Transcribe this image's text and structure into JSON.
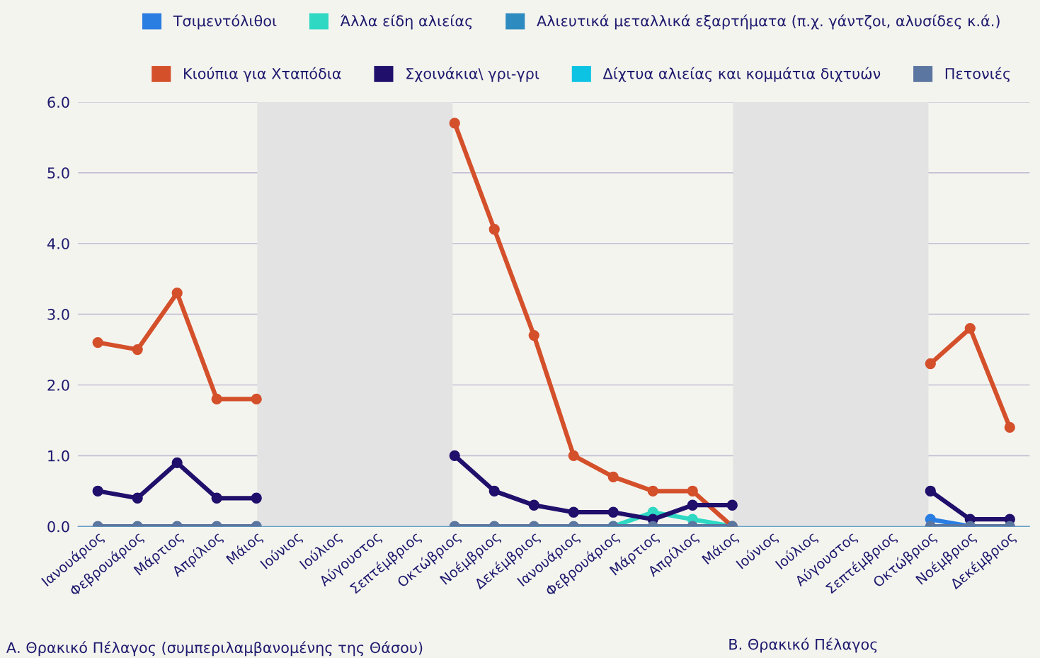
{
  "chart_data": {
    "type": "line",
    "categories": [
      "Ιανουάριος",
      "Φεβρουάριος",
      "Μάρτιος",
      "Απρίλιος",
      "Μάιος",
      "Ιούνιος",
      "Ιούλιος",
      "Αύγουστος",
      "Σεπτέμβριος",
      "Οκτώβριος",
      "Νοέμβριος",
      "Δεκέμβριος",
      "Ιανουάριος",
      "Φεβρουάριος",
      "Μάρτιος",
      "Απρίλιος",
      "Μάιος",
      "Ιούνιος",
      "Ιούλιος",
      "Αύγουστος",
      "Σεπτέμβριος",
      "Οκτώβριος",
      "Νοέμβριος",
      "Δεκέμβριος"
    ],
    "series": [
      {
        "name": "Τσιμεντόλιθοι",
        "color": "#2a7de1",
        "values": [
          null,
          null,
          null,
          null,
          null,
          null,
          null,
          null,
          null,
          null,
          null,
          null,
          null,
          null,
          null,
          null,
          null,
          null,
          null,
          null,
          null,
          0.1,
          0,
          null
        ]
      },
      {
        "name": "Άλλα είδη αλιείας",
        "color": "#2ed8c3",
        "values": [
          null,
          null,
          null,
          null,
          null,
          null,
          null,
          null,
          null,
          null,
          null,
          null,
          null,
          0,
          0.2,
          0.1,
          0,
          null,
          null,
          null,
          null,
          null,
          null,
          null
        ]
      },
      {
        "name": "Αλιευτικά μεταλλικά εξαρτήματα (π.χ. γάντζοι, αλυσίδες κ.ά.)",
        "color": "#2e8bc0",
        "values": [
          null,
          null,
          null,
          null,
          null,
          null,
          null,
          null,
          null,
          null,
          null,
          null,
          null,
          null,
          null,
          null,
          null,
          null,
          null,
          null,
          null,
          null,
          null,
          null
        ]
      },
      {
        "name": "Κιούπια για Χταπόδια",
        "color": "#d4502b",
        "values": [
          2.6,
          2.5,
          3.3,
          1.8,
          1.8,
          null,
          null,
          null,
          null,
          5.7,
          4.2,
          2.7,
          1.0,
          0.7,
          0.5,
          0.5,
          0,
          null,
          null,
          null,
          null,
          2.3,
          2.8,
          1.4
        ]
      },
      {
        "name": "Σχοινάκια\\ γρι-γρι",
        "color": "#200f6b",
        "values": [
          0.5,
          0.4,
          0.9,
          0.4,
          0.4,
          null,
          null,
          null,
          null,
          1.0,
          0.5,
          0.3,
          0.2,
          0.2,
          0.1,
          0.3,
          0.3,
          null,
          null,
          null,
          null,
          0.5,
          0.1,
          0.1
        ]
      },
      {
        "name": "Δίχτυα αλιείας και κομμάτια διχτυών",
        "color": "#0dc3e3",
        "values": [
          null,
          null,
          null,
          null,
          null,
          null,
          null,
          null,
          null,
          null,
          null,
          null,
          null,
          null,
          null,
          null,
          null,
          null,
          null,
          null,
          null,
          null,
          null,
          null
        ]
      },
      {
        "name": "Πετονιές",
        "color": "#5b76a0",
        "values": [
          0,
          0,
          0,
          0,
          0,
          null,
          null,
          null,
          null,
          0,
          0,
          0,
          0,
          0,
          0,
          0,
          0,
          null,
          null,
          null,
          null,
          0,
          0,
          0
        ]
      }
    ],
    "ylim": [
      0,
      6
    ],
    "yticks": [
      {
        "value": 0,
        "label": "0.0"
      },
      {
        "value": 1,
        "label": "1.0"
      },
      {
        "value": 2,
        "label": "2.0"
      },
      {
        "value": 3,
        "label": "3.0"
      },
      {
        "value": 4,
        "label": "4.0"
      },
      {
        "value": 5,
        "label": "5.0"
      },
      {
        "value": 6,
        "label": "6.0"
      }
    ],
    "annotations": [
      "Α. Θρακικό Πέλαγος (συμπεριλαμβανομένης της Θάσου)",
      "Β. Θρακικό Πέλαγος"
    ],
    "grid": "y",
    "legend": "top",
    "marker": "circle",
    "line_style": "solid"
  }
}
